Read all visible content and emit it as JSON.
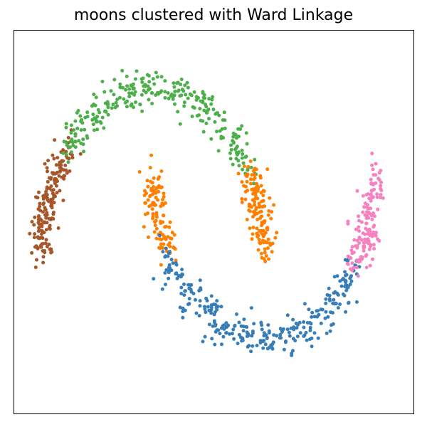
{
  "chart_data": {
    "type": "scatter",
    "title": "moons clustered with Ward Linkage",
    "xlabel": "",
    "ylabel": "",
    "xlim": [
      -1.25,
      2.35
    ],
    "ylim": [
      -0.95,
      1.35
    ],
    "grid": false,
    "axis_ticks": false,
    "legend": "none",
    "marker_size": 5,
    "series": [
      {
        "color": "#a65628",
        "arc": {
          "shape": "upper",
          "theta_range_deg": [
            140,
            180
          ]
        },
        "count": 180
      },
      {
        "color": "#4daf4a",
        "arc": {
          "shape": "upper",
          "theta_range_deg": [
            30,
            140
          ]
        },
        "count": 280
      },
      {
        "color": "#ff7f00",
        "arc": {
          "shape": "upper",
          "theta_range_deg": [
            0,
            30
          ]
        },
        "count": 140
      },
      {
        "color": "#ff7f00",
        "arc": {
          "shape": "lower",
          "theta_range_deg": [
            0,
            28
          ]
        },
        "count": 110
      },
      {
        "color": "#377eb8",
        "arc": {
          "shape": "lower",
          "theta_range_deg": [
            28,
            145
          ]
        },
        "count": 300
      },
      {
        "color": "#f781bf",
        "arc": {
          "shape": "lower",
          "theta_range_deg": [
            145,
            180
          ]
        },
        "count": 150
      }
    ]
  }
}
